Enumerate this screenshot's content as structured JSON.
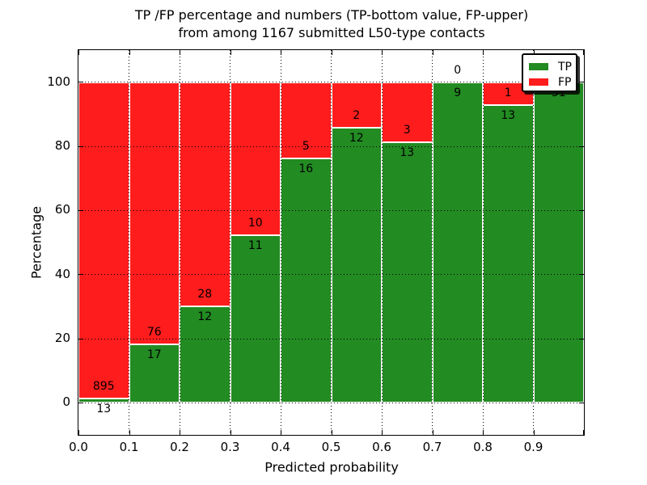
{
  "title": {
    "line1": "TP /FP percentage and numbers (TP-bottom value, FP-upper)",
    "line2": "from among 1167 submitted L50-type contacts"
  },
  "axes": {
    "xlabel": "Predicted probability",
    "ylabel": "Percentage",
    "xtick_labels": [
      "0.0",
      "0.1",
      "0.2",
      "0.3",
      "0.4",
      "0.5",
      "0.6",
      "0.7",
      "0.8",
      "0.9"
    ],
    "ytick_labels": [
      "0",
      "20",
      "40",
      "60",
      "80",
      "100"
    ]
  },
  "legend": {
    "items": [
      {
        "label": "TP",
        "color": "#228b22"
      },
      {
        "label": "FP",
        "color": "#ff1c1c"
      }
    ]
  },
  "chart_data": {
    "type": "bar",
    "stacked": true,
    "title": "TP /FP percentage and numbers (TP-bottom value, FP-upper) from among 1167 submitted L50-type contacts",
    "xlabel": "Predicted probability",
    "ylabel": "Percentage",
    "xlim": [
      0.0,
      1.0
    ],
    "ylim": [
      -10,
      110
    ],
    "bar_width": 0.1,
    "bin_starts": [
      0.0,
      0.1,
      0.2,
      0.3,
      0.4,
      0.5,
      0.6,
      0.7,
      0.8,
      0.9
    ],
    "series": [
      {
        "name": "TP",
        "color": "#228b22",
        "counts": [
          13,
          17,
          12,
          11,
          16,
          12,
          13,
          9,
          13,
          31
        ]
      },
      {
        "name": "FP",
        "color": "#ff1c1c",
        "counts": [
          895,
          76,
          28,
          10,
          5,
          2,
          3,
          0,
          1,
          0
        ]
      }
    ],
    "tp_percent": [
      1.43,
      18.28,
      30.0,
      52.38,
      76.19,
      85.71,
      81.25,
      100.0,
      92.86,
      100.0
    ],
    "total_contacts": 1167,
    "grid": "dotted",
    "ytick_step": 20,
    "legend_position": "upper right"
  }
}
